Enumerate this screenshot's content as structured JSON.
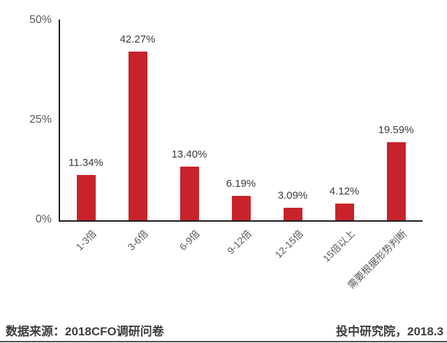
{
  "chart_data": {
    "type": "bar",
    "categories": [
      "1-3倍",
      "3-6倍",
      "6-9倍",
      "9-12倍",
      "12-15倍",
      "15倍以上",
      "需要根据形势判断"
    ],
    "values": [
      11.34,
      42.27,
      13.4,
      6.19,
      3.09,
      4.12,
      19.59
    ],
    "value_labels": [
      "11.34%",
      "42.27%",
      "13.40%",
      "6.19%",
      "3.09%",
      "4.12%",
      "19.59%"
    ],
    "title": "",
    "xlabel": "",
    "ylabel": "",
    "ylim": [
      0,
      50
    ],
    "yticks": [
      {
        "value": 0,
        "label": "0%"
      },
      {
        "value": 25,
        "label": "25%"
      },
      {
        "value": 50,
        "label": "50%"
      }
    ],
    "grid": false,
    "legend_position": "none",
    "bar_color": "#c8232c",
    "axis_color": "#1a1a1a",
    "tick_label_color": "#595959",
    "value_label_color": "#3a3a3a"
  },
  "footer": {
    "source_label": "数据来源：2018CFO调研问卷",
    "credit_label": "投中研究院，2018.3",
    "divider_red_color": "#e8251c",
    "divider_black_color": "#141414"
  }
}
